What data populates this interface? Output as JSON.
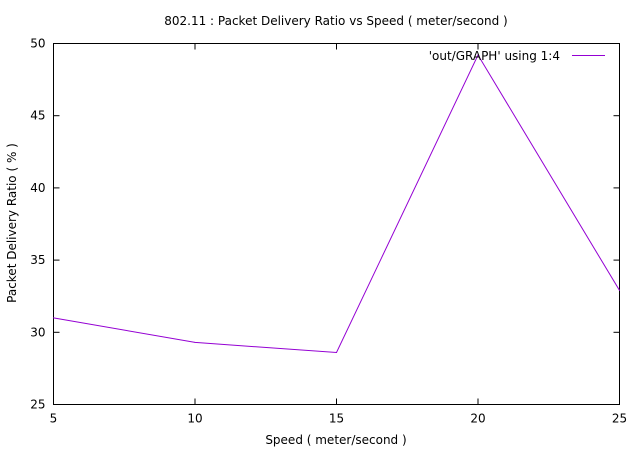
{
  "chart_data": {
    "type": "line",
    "title": "802.11 : Packet Delivery Ratio vs Speed ( meter/second )",
    "xlabel": "Speed ( meter/second )",
    "ylabel": "Packet Delivery Ratio ( % )",
    "xlim": [
      5,
      25
    ],
    "ylim": [
      25,
      50
    ],
    "xticks": [
      5,
      10,
      15,
      20,
      25
    ],
    "yticks": [
      25,
      30,
      35,
      40,
      45,
      50
    ],
    "grid": false,
    "legend_position": "top-right",
    "series": [
      {
        "name": "'out/GRAPH' using 1:4",
        "color": "#9400d3",
        "x": [
          5,
          10,
          15,
          20,
          25
        ],
        "y": [
          31.0,
          29.3,
          28.6,
          49.2,
          32.9
        ]
      }
    ]
  }
}
